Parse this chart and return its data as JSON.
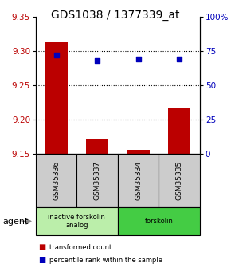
{
  "title": "GDS1038 / 1377339_at",
  "samples": [
    "GSM35336",
    "GSM35337",
    "GSM35334",
    "GSM35335"
  ],
  "bar_values": [
    9.312,
    9.172,
    9.156,
    9.216
  ],
  "bar_base": 9.15,
  "dot_values": [
    72,
    68,
    69,
    69
  ],
  "ylim_left": [
    9.15,
    9.35
  ],
  "ylim_right": [
    0,
    100
  ],
  "yticks_left": [
    9.15,
    9.2,
    9.25,
    9.3,
    9.35
  ],
  "yticks_right": [
    0,
    25,
    50,
    75,
    100
  ],
  "ytick_labels_right": [
    "0",
    "25",
    "50",
    "75",
    "100%"
  ],
  "bar_color": "#bb0000",
  "dot_color": "#0000bb",
  "groups": [
    {
      "label": "inactive forskolin\nanalog",
      "color": "#bbeeaa",
      "span": [
        0,
        2
      ]
    },
    {
      "label": "forskolin",
      "color": "#44cc44",
      "span": [
        2,
        4
      ]
    }
  ],
  "agent_label": "agent",
  "legend_items": [
    {
      "color": "#bb0000",
      "label": "transformed count"
    },
    {
      "color": "#0000bb",
      "label": "percentile rank within the sample"
    }
  ],
  "bg_color": "#ffffff",
  "sample_box_color": "#cccccc",
  "title_fontsize": 10,
  "tick_fontsize": 7.5,
  "bar_width": 0.55
}
